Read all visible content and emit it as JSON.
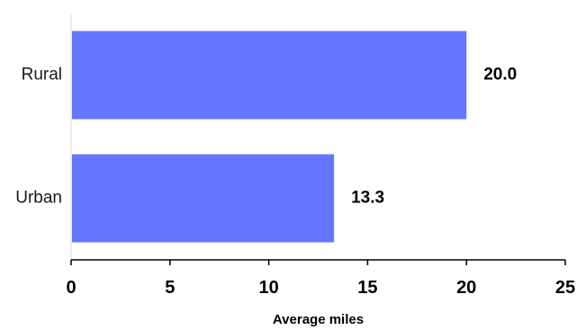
{
  "chart_data": {
    "type": "bar",
    "orientation": "horizontal",
    "categories": [
      "Rural",
      "Urban"
    ],
    "values": [
      20.0,
      13.3
    ],
    "value_labels": [
      "20.0",
      "13.3"
    ],
    "xlabel": "Average miles",
    "ylabel": "",
    "xlim": [
      0,
      25
    ],
    "xticks": [
      0,
      5,
      10,
      15,
      20,
      25
    ],
    "xtick_labels": [
      "0",
      "5",
      "10",
      "15",
      "20",
      "25"
    ],
    "grid": false,
    "legend": "none",
    "colors": {
      "bar": "#6476ff",
      "axis": "#000000",
      "category_axis": "#d9d9d9"
    }
  }
}
